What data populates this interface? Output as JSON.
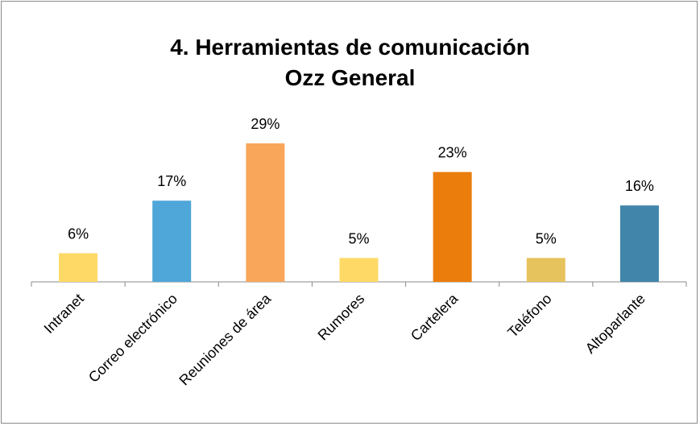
{
  "chart_data": {
    "type": "bar",
    "title": "4. Herramientas de comunicación Ozz General",
    "categories": [
      "Intranet",
      "Correo electrónico",
      "Reuniones de área",
      "Rumores",
      "Cartelera",
      "Teléfono",
      "Altoparlante"
    ],
    "values": [
      6,
      17,
      29,
      5,
      23,
      5,
      16
    ],
    "value_labels": [
      "6%",
      "17%",
      "29%",
      "5%",
      "23%",
      "5%",
      "16%"
    ],
    "colors": [
      "#ffd966",
      "#4fa6d8",
      "#f9a65a",
      "#ffd966",
      "#ea7d0c",
      "#e6c35c",
      "#4185aa"
    ]
  }
}
